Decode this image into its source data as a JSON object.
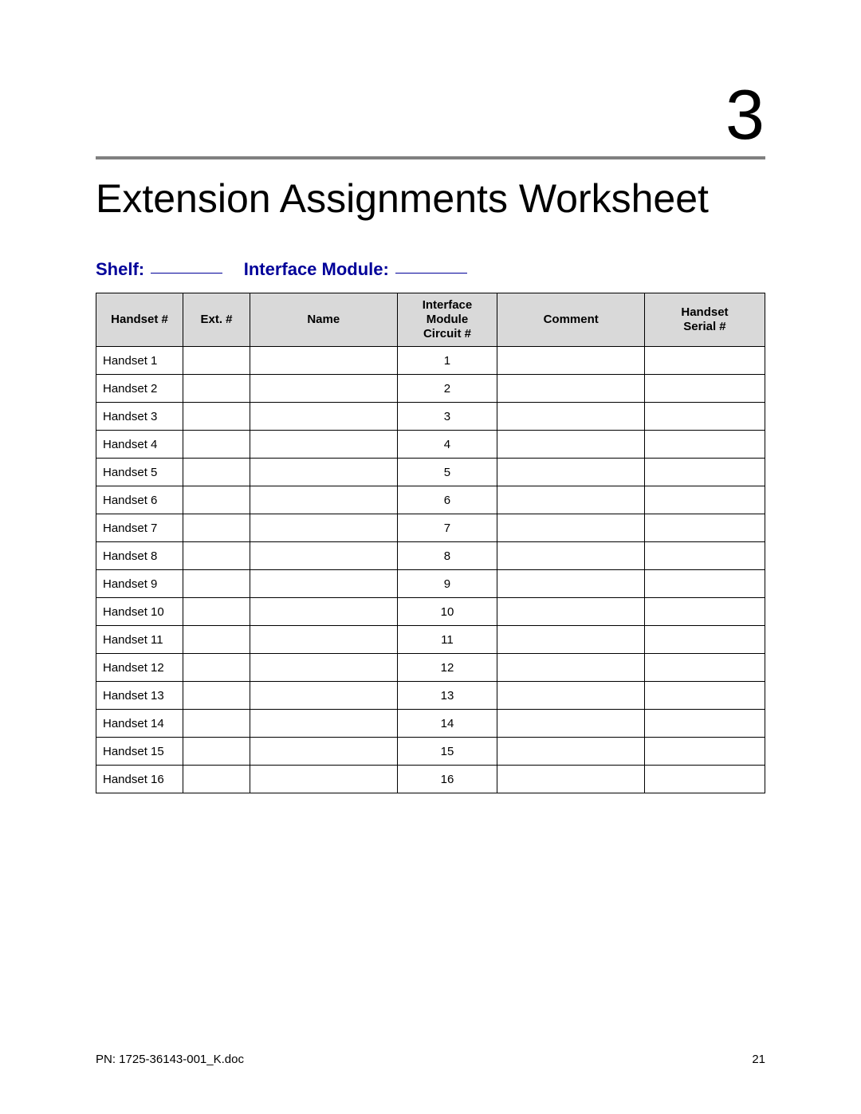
{
  "chapter": {
    "number": "3"
  },
  "title": "Extension Assignments Worksheet",
  "form": {
    "shelf_label": "Shelf:",
    "interface_module_label": "Interface Module:"
  },
  "table": {
    "headers": {
      "handset_num": "Handset #",
      "ext_num": "Ext. #",
      "name": "Name",
      "circuit": "Interface Module Circuit #",
      "comment": "Comment",
      "serial": "Handset Serial #"
    },
    "columns": [
      "handset_num",
      "ext_num",
      "name",
      "circuit",
      "comment",
      "serial"
    ],
    "rows": [
      {
        "handset_num": "Handset 1",
        "ext_num": "",
        "name": "",
        "circuit": "1",
        "comment": "",
        "serial": ""
      },
      {
        "handset_num": "Handset 2",
        "ext_num": "",
        "name": "",
        "circuit": "2",
        "comment": "",
        "serial": ""
      },
      {
        "handset_num": "Handset 3",
        "ext_num": "",
        "name": "",
        "circuit": "3",
        "comment": "",
        "serial": ""
      },
      {
        "handset_num": "Handset 4",
        "ext_num": "",
        "name": "",
        "circuit": "4",
        "comment": "",
        "serial": ""
      },
      {
        "handset_num": "Handset 5",
        "ext_num": "",
        "name": "",
        "circuit": "5",
        "comment": "",
        "serial": ""
      },
      {
        "handset_num": "Handset 6",
        "ext_num": "",
        "name": "",
        "circuit": "6",
        "comment": "",
        "serial": ""
      },
      {
        "handset_num": "Handset 7",
        "ext_num": "",
        "name": "",
        "circuit": "7",
        "comment": "",
        "serial": ""
      },
      {
        "handset_num": "Handset 8",
        "ext_num": "",
        "name": "",
        "circuit": "8",
        "comment": "",
        "serial": ""
      },
      {
        "handset_num": "Handset 9",
        "ext_num": "",
        "name": "",
        "circuit": "9",
        "comment": "",
        "serial": ""
      },
      {
        "handset_num": "Handset 10",
        "ext_num": "",
        "name": "",
        "circuit": "10",
        "comment": "",
        "serial": ""
      },
      {
        "handset_num": "Handset 11",
        "ext_num": "",
        "name": "",
        "circuit": "11",
        "comment": "",
        "serial": ""
      },
      {
        "handset_num": "Handset 12",
        "ext_num": "",
        "name": "",
        "circuit": "12",
        "comment": "",
        "serial": ""
      },
      {
        "handset_num": "Handset 13",
        "ext_num": "",
        "name": "",
        "circuit": "13",
        "comment": "",
        "serial": ""
      },
      {
        "handset_num": "Handset 14",
        "ext_num": "",
        "name": "",
        "circuit": "14",
        "comment": "",
        "serial": ""
      },
      {
        "handset_num": "Handset 15",
        "ext_num": "",
        "name": "",
        "circuit": "15",
        "comment": "",
        "serial": ""
      },
      {
        "handset_num": "Handset 16",
        "ext_num": "",
        "name": "",
        "circuit": "16",
        "comment": "",
        "serial": ""
      }
    ]
  },
  "footer": {
    "doc_id": "PN: 1725-36143-001_K.doc",
    "page_number": "21"
  },
  "styling": {
    "accent_color": "#000099",
    "rule_color": "#808080",
    "header_bg": "#d9d9d9",
    "body_font_size_pt": 11,
    "title_font_size_pt": 38,
    "chapter_font_size_pt": 66,
    "form_font_size_pt": 17
  }
}
